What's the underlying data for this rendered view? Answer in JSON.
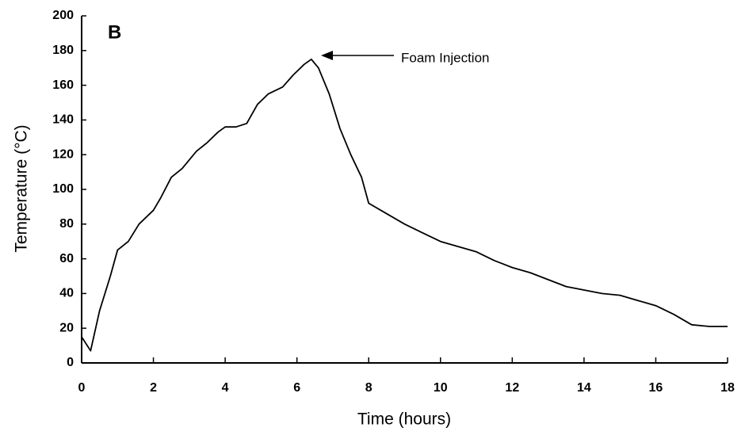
{
  "chart_data": {
    "type": "line",
    "panel_label": "B",
    "annotation": "Foam Injection",
    "xlabel": "Time (hours)",
    "ylabel": "Temperature (°C)",
    "x": [
      0,
      0.25,
      0.5,
      0.8,
      1.0,
      1.3,
      1.6,
      2.0,
      2.2,
      2.5,
      2.8,
      3.2,
      3.5,
      3.8,
      4.0,
      4.3,
      4.6,
      4.9,
      5.2,
      5.6,
      5.9,
      6.2,
      6.4,
      6.6,
      6.9,
      7.2,
      7.5,
      7.8,
      8.0,
      8.5,
      9.0,
      9.5,
      10.0,
      10.5,
      11.0,
      11.5,
      12.0,
      12.5,
      13.0,
      13.5,
      14.0,
      14.5,
      15.0,
      15.5,
      16.0,
      16.5,
      17.0,
      17.5,
      18.0
    ],
    "values": [
      15,
      7,
      30,
      50,
      65,
      70,
      80,
      88,
      95,
      107,
      112,
      122,
      127,
      133,
      136,
      136,
      138,
      149,
      155,
      159,
      166,
      172,
      175,
      170,
      155,
      135,
      120,
      107,
      92,
      86,
      80,
      75,
      70,
      67,
      64,
      59,
      55,
      52,
      48,
      44,
      42,
      40,
      39,
      36,
      33,
      28,
      22,
      21,
      21
    ],
    "color": "#000000",
    "xlim": [
      0,
      18
    ],
    "xticks": [
      0,
      2,
      4,
      6,
      8,
      10,
      12,
      14,
      16,
      18
    ],
    "ylim": [
      0,
      200
    ],
    "yticks": [
      0,
      20,
      40,
      60,
      80,
      100,
      120,
      140,
      160,
      180,
      200
    ],
    "grid": false
  }
}
